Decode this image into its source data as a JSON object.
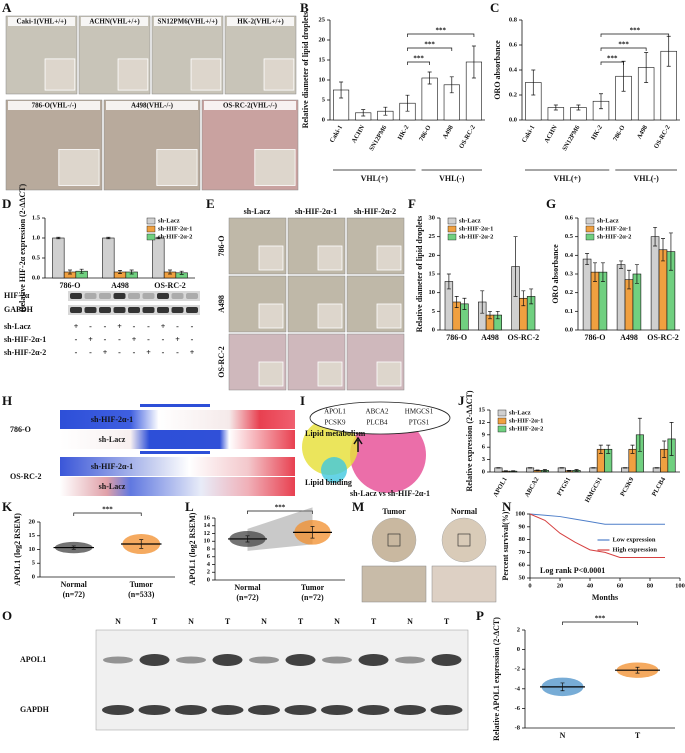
{
  "panel_labels": [
    "A",
    "B",
    "C",
    "D",
    "E",
    "F",
    "G",
    "H",
    "I",
    "J",
    "K",
    "L",
    "M",
    "N",
    "O",
    "P"
  ],
  "panels": {
    "A": {
      "images": [
        "Caki-1(VHL+/+)",
        "ACHN(VHL+/+)",
        "SN12PM6(VHL+/+)",
        "HK-2(VHL+/+)",
        "786-O(VHL-/-)",
        "A498(VHL-/-)",
        "OS-RC-2(VHL-/-)"
      ]
    },
    "D": {
      "blot_rows": [
        "HIF-2α",
        "GAPDH"
      ],
      "conditions": [
        {
          "name": "sh-Lacz",
          "signs": [
            "+",
            "-",
            "-",
            "+",
            "-",
            "-",
            "+",
            "-",
            "-"
          ]
        },
        {
          "name": "sh-HIF-2α-1",
          "signs": [
            "-",
            "+",
            "-",
            "-",
            "+",
            "-",
            "-",
            "+",
            "-"
          ]
        },
        {
          "name": "sh-HIF-2α-2",
          "signs": [
            "-",
            "-",
            "+",
            "-",
            "-",
            "+",
            "-",
            "-",
            "+"
          ]
        }
      ]
    },
    "E": {
      "columns": [
        "sh-Lacz",
        "sh-HIF-2α-1",
        "sh-HIF-2α-2"
      ],
      "rows": [
        "786-O",
        "A498",
        "OS-RC-2"
      ]
    },
    "H": {
      "groups": [
        {
          "name": "786-O",
          "rows": [
            "sh-HIF-2α-1",
            "sh-Lacz"
          ]
        },
        {
          "name": "OS-RC-2",
          "rows": [
            "sh-HIF-2α-1",
            "sh-Lacz"
          ]
        }
      ]
    },
    "I": {
      "genes": [
        "APOL1",
        "ABCA2",
        "HMGCS1",
        "PCSK9",
        "PLCB4",
        "PTGS1"
      ],
      "sets": [
        "Lipid metabolism",
        "Lipid binding",
        "sh-Lacz vs sh-HIF-2α-1"
      ]
    },
    "M": {
      "labels": [
        "Tumor",
        "Normal"
      ]
    },
    "O": {
      "lanes": [
        "N",
        "T",
        "N",
        "T",
        "N",
        "T",
        "N",
        "T",
        "N",
        "T"
      ],
      "rows": [
        "APOL1",
        "GAPDH"
      ]
    }
  },
  "chart_data": [
    {
      "type": "bar",
      "ylabel": "Relative diameter of lipid droplets",
      "categories": [
        "Caki-1",
        "ACHN",
        "SN12PM6",
        "HK-2",
        "786-O",
        "A498",
        "OS-RC-2"
      ],
      "values": [
        7.5,
        1.8,
        2.2,
        4.2,
        10.5,
        8.8,
        14.5
      ],
      "errors": [
        2,
        0.8,
        1,
        2,
        1.5,
        2,
        4
      ],
      "color": "#ffffff",
      "ylim": [
        0,
        25
      ],
      "yticks": [
        0,
        5,
        10,
        15,
        20,
        25
      ],
      "group_labels": [
        "VHL(+)",
        "VHL(-)"
      ],
      "significance": [
        "***",
        "***",
        "***"
      ]
    },
    {
      "type": "bar",
      "ylabel": "ORO absorbance",
      "categories": [
        "Caki-1",
        "ACHN",
        "SN12PM6",
        "HK-2",
        "786-O",
        "A498",
        "OS-RC-2"
      ],
      "values": [
        0.3,
        0.1,
        0.1,
        0.15,
        0.35,
        0.42,
        0.55
      ],
      "errors": [
        0.1,
        0.02,
        0.02,
        0.06,
        0.12,
        0.12,
        0.12
      ],
      "color": "#ffffff",
      "ylim": [
        0,
        0.8
      ],
      "yticks": [
        {
          "value": 0,
          "label": "0.0"
        },
        0.2,
        0.4,
        0.6,
        0.8
      ],
      "group_labels": [
        "VHL(+)",
        "VHL(-)"
      ],
      "significance": [
        "***",
        "***",
        "***"
      ]
    },
    {
      "type": "bar",
      "ylabel": "Relative HIF-2α expression (2-ΔΔCT)",
      "categories": [
        "786-O",
        "A498",
        "OS-RC-2"
      ],
      "series": [
        {
          "name": "sh-Lacz",
          "color": "#d0d0d0",
          "values": [
            1,
            1,
            1
          ],
          "errors": [
            0.02,
            0.02,
            0.02
          ]
        },
        {
          "name": "sh-HIF-2α-1",
          "color": "#f0a040",
          "values": [
            0.15,
            0.15,
            0.15
          ],
          "errors": [
            0.05,
            0.04,
            0.05
          ]
        },
        {
          "name": "sh-HIF-2α-2",
          "color": "#70d080",
          "values": [
            0.17,
            0.15,
            0.13
          ],
          "errors": [
            0.05,
            0.05,
            0.04
          ]
        }
      ],
      "ylim": [
        0,
        1.5
      ],
      "yticks": [
        {
          "value": 0,
          "label": "0.0"
        },
        0.5,
        {
          "value": 1,
          "label": "1.0"
        },
        1.5
      ],
      "legend": "upper right"
    },
    {
      "type": "bar",
      "ylabel": "Relative diameter of lipid droplets",
      "categories": [
        "786-O",
        "A498",
        "OS-RC-2"
      ],
      "series": [
        {
          "name": "sh-Lacz",
          "color": "#d0d0d0",
          "values": [
            13,
            7.5,
            17
          ],
          "errors": [
            2,
            3,
            8
          ]
        },
        {
          "name": "sh-HIF-2α-1",
          "color": "#f0a040",
          "values": [
            7.5,
            4,
            8.5
          ],
          "errors": [
            1.5,
            1,
            2
          ]
        },
        {
          "name": "sh-HIF-2α-2",
          "color": "#70d080",
          "values": [
            7,
            4,
            9
          ],
          "errors": [
            1.5,
            1,
            2
          ]
        }
      ],
      "ylim": [
        0,
        30
      ],
      "yticks": [
        0,
        5,
        10,
        15,
        20,
        25,
        30
      ],
      "legend": "upper left"
    },
    {
      "type": "bar",
      "ylabel": "ORO absorbance",
      "categories": [
        "786-O",
        "A498",
        "OS-RC-2"
      ],
      "series": [
        {
          "name": "sh-Lacz",
          "color": "#d0d0d0",
          "values": [
            0.38,
            0.35,
            0.5
          ],
          "errors": [
            0.03,
            0.02,
            0.05
          ]
        },
        {
          "name": "sh-HIF-2α-1",
          "color": "#f0a040",
          "values": [
            0.31,
            0.27,
            0.43
          ],
          "errors": [
            0.05,
            0.05,
            0.06
          ]
        },
        {
          "name": "sh-HIF-2α-2",
          "color": "#70d080",
          "values": [
            0.31,
            0.3,
            0.42
          ],
          "errors": [
            0.05,
            0.05,
            0.1
          ]
        }
      ],
      "ylim": [
        0,
        0.6
      ],
      "yticks": [
        {
          "value": 0,
          "label": "0.0"
        },
        0.1,
        0.2,
        0.3,
        0.4,
        0.5,
        0.6
      ],
      "legend": "upper left"
    },
    {
      "type": "bar",
      "ylabel": "Relative expression (2-ΔΔCT)",
      "categories": [
        "APOL1",
        "ABCA2",
        "PTGS1",
        "HMGCS1",
        "PCSK9",
        "PLCB4"
      ],
      "series": [
        {
          "name": "sh-Lacz",
          "color": "#d0d0d0",
          "values": [
            1,
            1,
            1,
            1,
            1,
            1
          ],
          "errors": [
            0.05,
            0.05,
            0.05,
            0.05,
            0.05,
            0.05
          ]
        },
        {
          "name": "sh-HIF-2α-1",
          "color": "#f0a040",
          "values": [
            0.2,
            0.4,
            0.3,
            5.5,
            5.5,
            5.5
          ],
          "errors": [
            0.1,
            0.1,
            0.1,
            1,
            1,
            2
          ]
        },
        {
          "name": "sh-HIF-2α-2",
          "color": "#70d080",
          "values": [
            0.2,
            0.4,
            0.4,
            5.5,
            9,
            8
          ],
          "errors": [
            0.1,
            0.2,
            0.2,
            1,
            4,
            4
          ]
        }
      ],
      "ylim": [
        0,
        15
      ],
      "yticks": [
        0,
        3,
        6,
        9,
        12,
        15
      ],
      "legend": "upper left"
    },
    {
      "type": "strip",
      "ylabel": "APOL1 (log2 RSEM)",
      "categories": [
        "Normal",
        "Tumor"
      ],
      "category_notes": [
        "(n=72)",
        "(n=533)"
      ],
      "values": [
        10.7,
        12.0
      ],
      "errors": [
        0.6,
        1.6
      ],
      "colors": [
        "#444444",
        "#f28e2b"
      ],
      "ylim": [
        0,
        20
      ],
      "yticks": [
        0,
        5,
        10,
        15,
        20
      ],
      "significance": [
        "***"
      ]
    },
    {
      "type": "strip",
      "paired": true,
      "ylabel": "APOL1 (log2 RSEM)",
      "categories": [
        "Normal",
        "Tumor"
      ],
      "category_notes": [
        "(n=72)",
        "(n=72)"
      ],
      "values": [
        10.6,
        12.3
      ],
      "errors": [
        0.8,
        1.5
      ],
      "colors": [
        "#444444",
        "#f28e2b"
      ],
      "ylim": [
        0,
        16
      ],
      "yticks": [
        0,
        2,
        4,
        6,
        8,
        10,
        12,
        14,
        16
      ],
      "significance": [
        "***"
      ]
    },
    {
      "type": "line",
      "ylabel": "Percent survival(%)",
      "xlabel": "Months",
      "annotation": "Log rank P<0.0001",
      "x": [
        0,
        10,
        20,
        30,
        40,
        50,
        60,
        70,
        80,
        90
      ],
      "series": [
        {
          "name": "Low expression",
          "color": "#4f7fc9",
          "values": [
            100,
            99,
            98,
            96,
            94,
            92,
            92,
            92,
            92,
            92
          ]
        },
        {
          "name": "High expression",
          "color": "#d64040",
          "values": [
            100,
            95,
            85,
            78,
            72,
            70,
            66,
            66,
            66,
            66
          ]
        }
      ],
      "xlim": [
        0,
        100
      ],
      "xticks": [
        0,
        20,
        40,
        60,
        80,
        100
      ],
      "ylim": [
        50,
        100
      ],
      "yticks": [
        50,
        60,
        70,
        80,
        90,
        100
      ],
      "legend": "center right"
    },
    {
      "type": "strip",
      "ylabel": "Relative APOL1 expression (2-ΔCT)",
      "categories": [
        "N",
        "T"
      ],
      "values": [
        -3.8,
        -2.1
      ],
      "errors": [
        0.4,
        0.3
      ],
      "colors": [
        "#4a90c8",
        "#f28e2b"
      ],
      "ylim": [
        -8,
        2
      ],
      "yticks": [
        -8,
        -6,
        -4,
        -2,
        0,
        2
      ],
      "significance": [
        "***"
      ]
    }
  ]
}
